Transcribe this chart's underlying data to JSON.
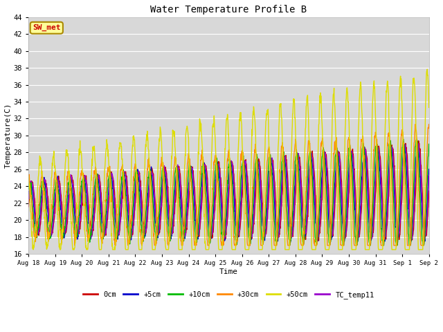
{
  "title": "Water Temperature Profile B",
  "xlabel": "Time",
  "ylabel": "Temperature(C)",
  "ylim": [
    16,
    44
  ],
  "yticks": [
    16,
    18,
    20,
    22,
    24,
    26,
    28,
    30,
    32,
    34,
    36,
    38,
    40,
    42,
    44
  ],
  "bg_color": "#d8d8d8",
  "series": {
    "0cm": {
      "color": "#cc0000",
      "lw": 1.0
    },
    "+5cm": {
      "color": "#0000cc",
      "lw": 1.0
    },
    "+10cm": {
      "color": "#00bb00",
      "lw": 1.0
    },
    "+30cm": {
      "color": "#ff8800",
      "lw": 1.0
    },
    "+50cm": {
      "color": "#dddd00",
      "lw": 1.0
    },
    "TC_temp11": {
      "color": "#9900cc",
      "lw": 1.0
    }
  },
  "legend_box_facecolor": "#ffff99",
  "legend_box_edgecolor": "#aa8800",
  "sw_met_color": "#cc0000",
  "annotation": "SW_met",
  "font_family": "monospace",
  "figsize": [
    6.4,
    4.8
  ],
  "dpi": 100
}
